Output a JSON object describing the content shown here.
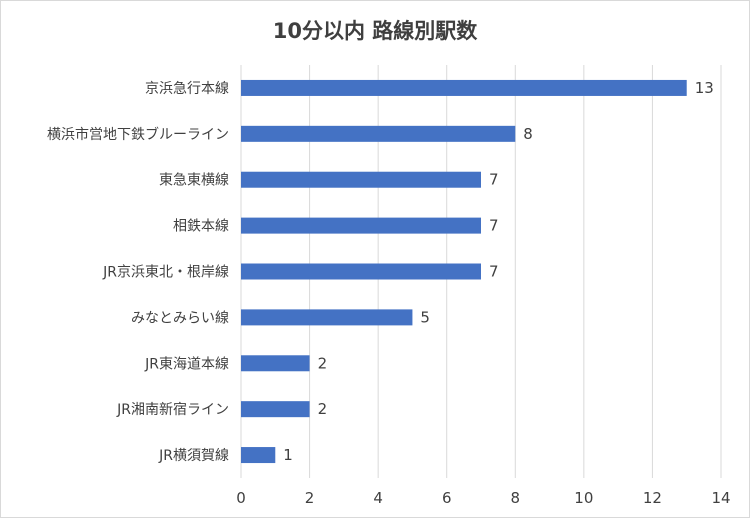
{
  "chart_data": {
    "type": "bar",
    "orientation": "horizontal",
    "title": "10分以内 路線別駅数",
    "categories": [
      "京浜急行本線",
      "横浜市営地下鉄ブルーライン",
      "東急東横線",
      "相鉄本線",
      "JR京浜東北・根岸線",
      "みなとみらい線",
      "JR東海道本線",
      "JR湘南新宿ライン",
      "JR横須賀線"
    ],
    "values": [
      13,
      8,
      7,
      7,
      7,
      5,
      2,
      2,
      1
    ],
    "xlim": [
      0,
      14
    ],
    "xticks": [
      0,
      2,
      4,
      6,
      8,
      10,
      12,
      14
    ],
    "grid": "vertical",
    "bar_color": "#4472c4",
    "grid_color": "#d9d9d9",
    "data_labels": true
  }
}
